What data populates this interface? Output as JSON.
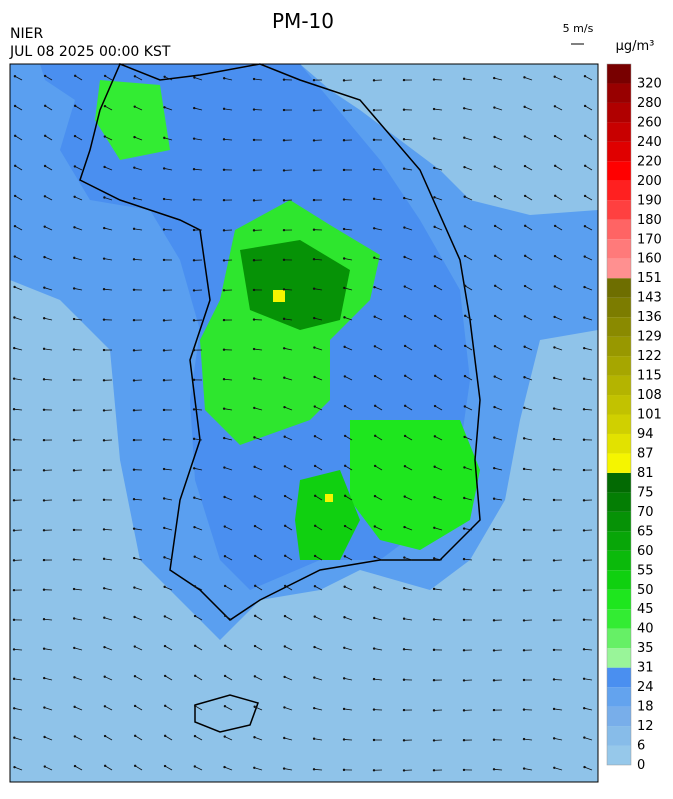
{
  "header": {
    "title": "PM-10",
    "source": "NIER",
    "datetime": "JUL 08 2025 00:00 KST",
    "wind_scale": "5 m/s",
    "unit": "μg/m³"
  },
  "colorbar": {
    "levels": [
      0,
      6,
      12,
      18,
      24,
      31,
      35,
      40,
      45,
      50,
      55,
      60,
      65,
      70,
      75,
      81,
      87,
      94,
      101,
      108,
      115,
      122,
      129,
      136,
      143,
      151,
      160,
      170,
      180,
      190,
      200,
      220,
      240,
      260,
      280,
      320
    ],
    "colors": [
      "#96c8ea",
      "#87bce9",
      "#78aeea",
      "#63a3ee",
      "#4a8ff0",
      "#99f599",
      "#66f066",
      "#33ec33",
      "#1ee61e",
      "#10d010",
      "#0bba0b",
      "#08a608",
      "#069206",
      "#047e04",
      "#036a03",
      "#f5f500",
      "#e2e200",
      "#d0d000",
      "#c2c200",
      "#b4b400",
      "#a6a600",
      "#989800",
      "#8a8a00",
      "#7c7c00",
      "#6e6e00",
      "#ff9090",
      "#ff7a7a",
      "#ff6464",
      "#ff4040",
      "#ff2020",
      "#ff0000",
      "#e00000",
      "#c80000",
      "#b00000",
      "#980000",
      "#780000"
    ]
  }
}
